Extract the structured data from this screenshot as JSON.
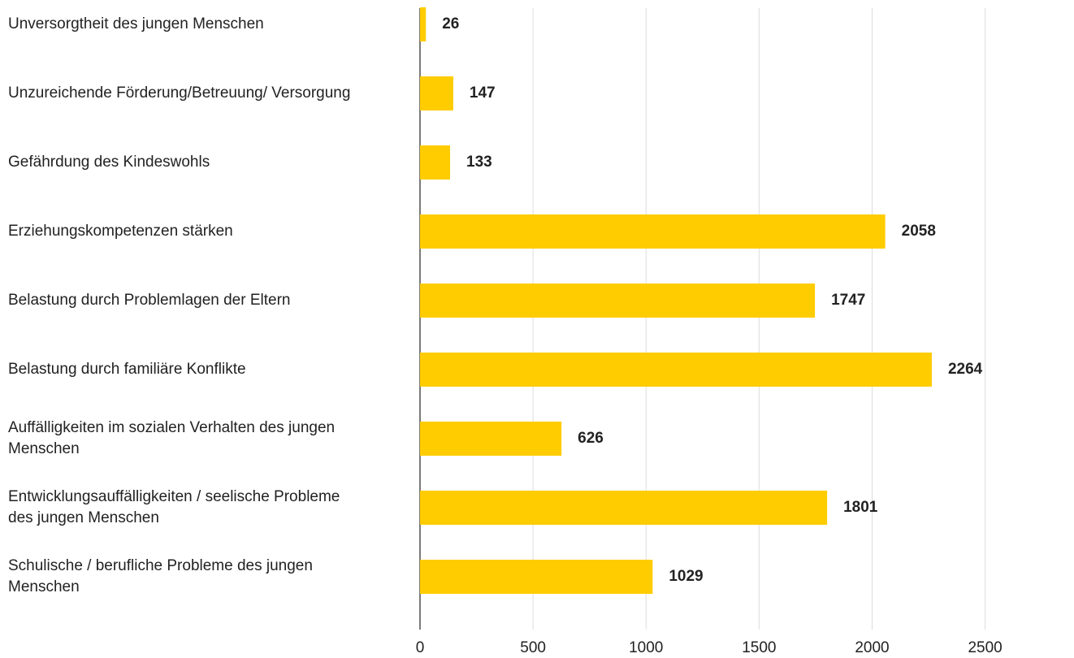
{
  "chart_data": {
    "type": "bar",
    "orientation": "horizontal",
    "categories": [
      "Unversorgtheit des jungen Menschen",
      "Unzureichende Förderung/Betreuung/ Versorgung",
      "Gefährdung des Kindeswohls",
      "Erziehungskompetenzen stärken",
      "Belastung durch Problemlagen der Eltern",
      "Belastung durch familiäre Konflikte",
      "Auffälligkeiten im sozialen Verhalten des jungen Menschen",
      "Entwicklungsauffälligkeiten / seelische Probleme des jungen Menschen",
      "Schulische / berufliche Probleme des jungen Menschen"
    ],
    "values": [
      26,
      147,
      133,
      2058,
      1747,
      2264,
      626,
      1801,
      1029
    ],
    "color": "#ffcc00",
    "xlim": [
      0,
      2850
    ],
    "xticks": [
      0,
      500,
      1000,
      1500,
      2000,
      2500
    ],
    "grid": true
  }
}
